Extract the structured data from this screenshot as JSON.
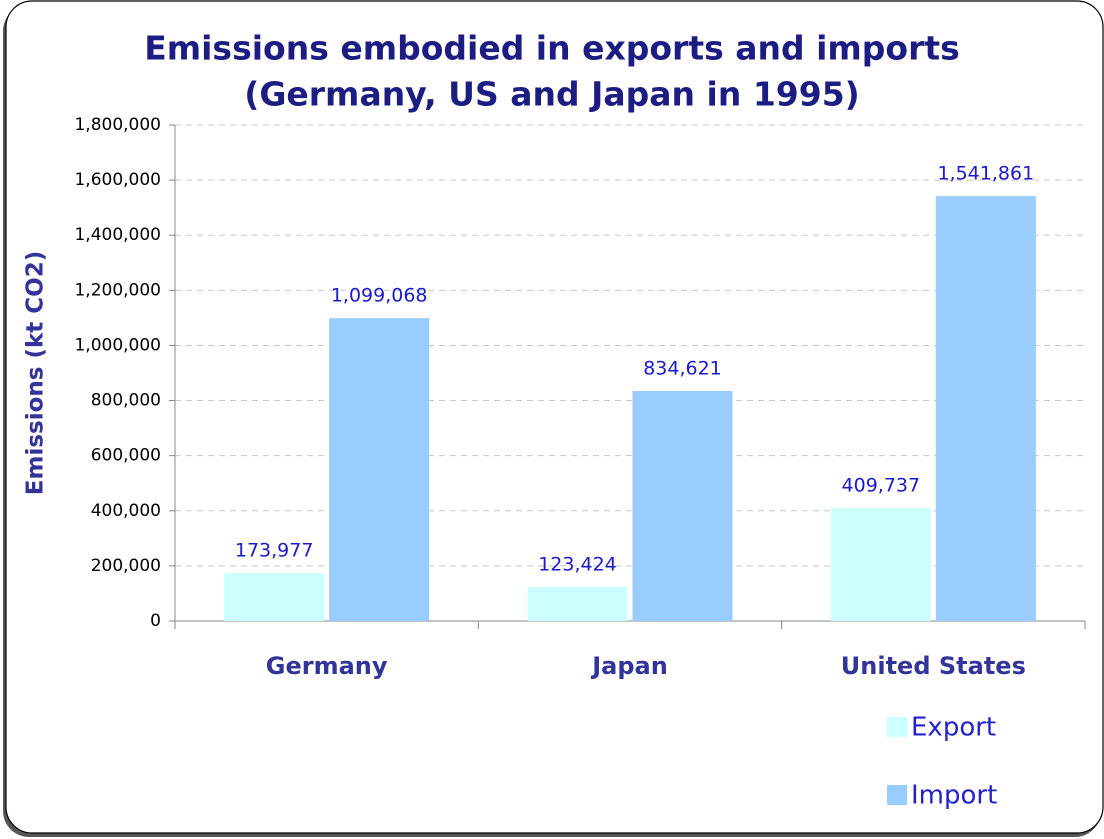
{
  "chart_data": {
    "type": "bar",
    "title": [
      "Emissions embodied in exports and imports",
      "(Germany, US and Japan in 1995)"
    ],
    "y_label": "Emissions (kt CO2)",
    "categories": [
      "Germany",
      "Japan",
      "United States"
    ],
    "series": [
      {
        "name": "Export",
        "color": "#ccffff",
        "values": [
          173977,
          123424,
          409737
        ],
        "value_labels": [
          "173,977",
          "123,424",
          "409,737"
        ]
      },
      {
        "name": "Import",
        "color": "#99ccff",
        "values": [
          1099068,
          834621,
          1541861
        ],
        "value_labels": [
          "1,099,068",
          "834,621",
          "1,541,861"
        ]
      }
    ],
    "ylim": [
      0,
      1800000
    ],
    "yticks": [
      0,
      {
        "value": 200000,
        "label": "200,000"
      },
      {
        "value": 400000,
        "label": "400,000"
      },
      {
        "value": 600000,
        "label": "600,000"
      },
      {
        "value": 800000,
        "label": "800,000"
      },
      {
        "value": 1000000,
        "label": "1,000,000"
      },
      {
        "value": 1200000,
        "label": "1,200,000"
      },
      {
        "value": 1400000,
        "label": "1,400,000"
      },
      {
        "value": 1600000,
        "label": "1,600,000"
      },
      {
        "value": 1800000,
        "label": "1,800,000"
      }
    ],
    "grid": true,
    "legend": "bottom-right"
  }
}
